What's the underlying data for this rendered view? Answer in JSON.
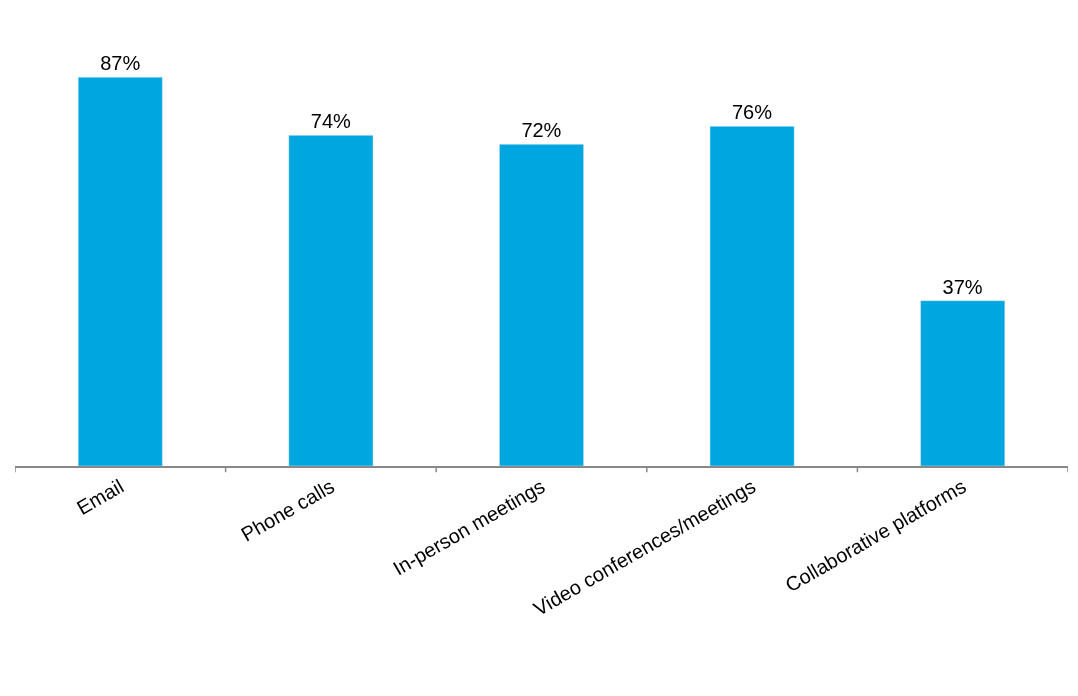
{
  "chart_data": {
    "type": "bar",
    "categories": [
      "Email",
      "Phone calls",
      "In-person meetings",
      "Video conferences/meetings",
      "Collaborative platforms"
    ],
    "values": [
      87,
      74,
      72,
      76,
      37
    ],
    "value_labels": [
      "87%",
      "74%",
      "72%",
      "76%",
      "37%"
    ],
    "color": "#00a6df",
    "legend": false
  }
}
